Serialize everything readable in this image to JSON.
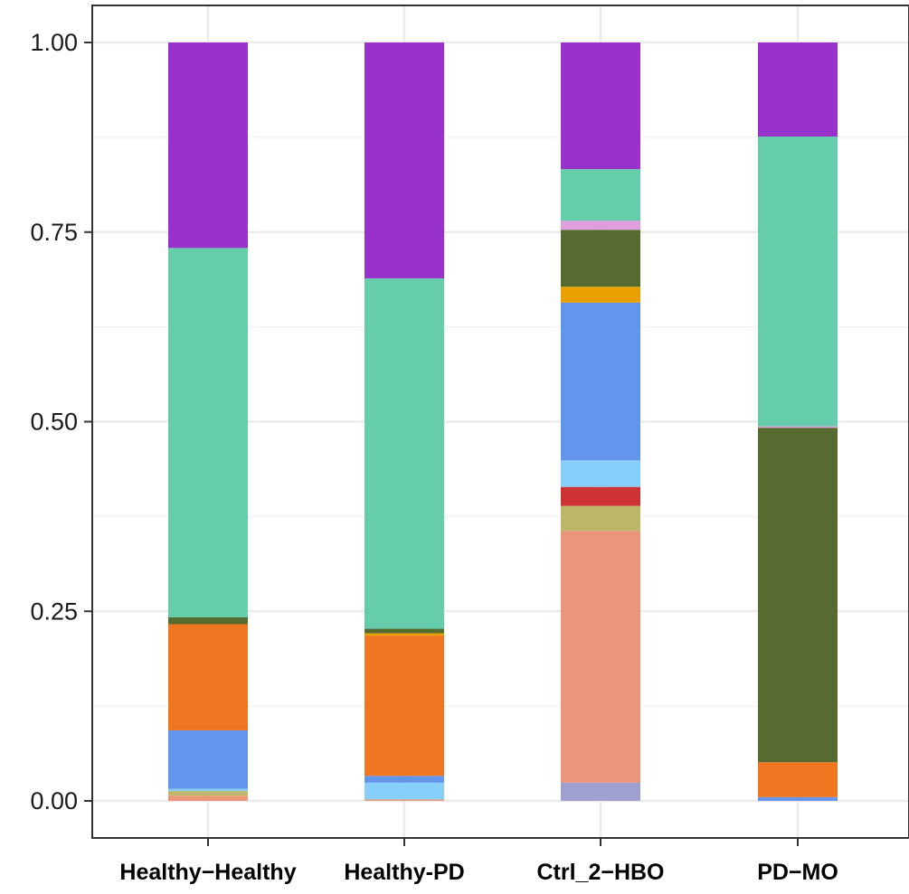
{
  "chart_data": {
    "type": "bar",
    "stacked": true,
    "title": "",
    "xlabel": "",
    "ylabel": "",
    "ylim": [
      0,
      1.05
    ],
    "yticks": [
      0.0,
      0.25,
      0.5,
      0.75,
      1.0
    ],
    "ytick_labels": [
      "0.00",
      "0.25",
      "0.50",
      "0.75",
      "1.00"
    ],
    "categories": [
      "Healthy−Healthy",
      "Healthy-PD",
      "Ctrl_2−HBO",
      "PD−MO"
    ],
    "grid": true,
    "legend": "none",
    "stacks": [
      [
        {
          "value": 0.007,
          "color": "#E9967A"
        },
        {
          "value": 0.006,
          "color": "#BDB76B"
        },
        {
          "value": 0.003,
          "color": "#87CEFA"
        },
        {
          "value": 0.077,
          "color": "#6495ED"
        },
        {
          "value": 0.14,
          "color": "#EE7621"
        },
        {
          "value": 0.009,
          "color": "#556B2F"
        },
        {
          "value": 0.487,
          "color": "#66CDAA"
        },
        {
          "value": 0.271,
          "color": "#9932CC"
        }
      ],
      [
        {
          "value": 0.002,
          "color": "#E9967A"
        },
        {
          "value": 0.022,
          "color": "#87CEFA"
        },
        {
          "value": 0.009,
          "color": "#6495ED"
        },
        {
          "value": 0.185,
          "color": "#EE7621"
        },
        {
          "value": 0.003,
          "color": "#E8A000"
        },
        {
          "value": 0.006,
          "color": "#556B2F"
        },
        {
          "value": 0.462,
          "color": "#66CDAA"
        },
        {
          "value": 0.311,
          "color": "#9932CC"
        }
      ],
      [
        {
          "value": 0.024,
          "color": "#9F9FD0"
        },
        {
          "value": 0.332,
          "color": "#E9967A"
        },
        {
          "value": 0.033,
          "color": "#BDB76B"
        },
        {
          "value": 0.025,
          "color": "#CD3333"
        },
        {
          "value": 0.035,
          "color": "#87CEFA"
        },
        {
          "value": 0.208,
          "color": "#6495ED"
        },
        {
          "value": 0.021,
          "color": "#E8A000"
        },
        {
          "value": 0.075,
          "color": "#556B2F"
        },
        {
          "value": 0.012,
          "color": "#DDA0DD"
        },
        {
          "value": 0.068,
          "color": "#66CDAA"
        },
        {
          "value": 0.167,
          "color": "#9932CC"
        }
      ],
      [
        {
          "value": 0.005,
          "color": "#6495ED"
        },
        {
          "value": 0.046,
          "color": "#EE7621"
        },
        {
          "value": 0.441,
          "color": "#556B2F"
        },
        {
          "value": 0.002,
          "color": "#DDA0DD"
        },
        {
          "value": 0.382,
          "color": "#66CDAA"
        },
        {
          "value": 0.124,
          "color": "#9932CC"
        }
      ]
    ]
  }
}
